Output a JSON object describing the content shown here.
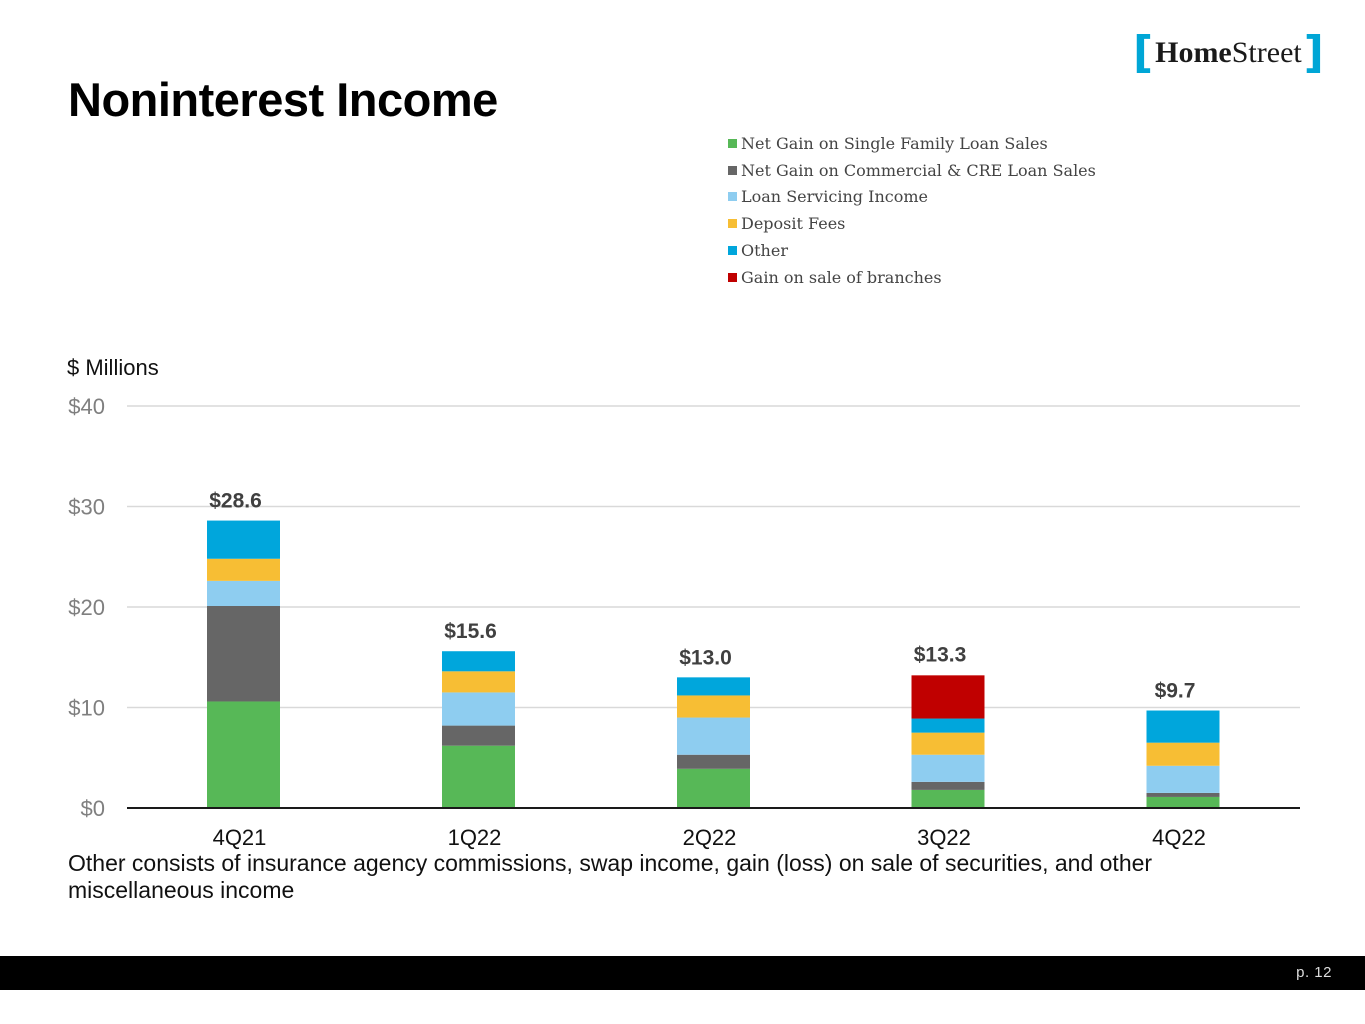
{
  "page": {
    "title": "Noninterest Income",
    "logo_text_home": "Home",
    "logo_text_street": "Street",
    "note": "Other consists of insurance agency commissions, swap income, gain (loss) on sale of securities, and other miscellaneous income",
    "page_number": "p. 12"
  },
  "chart_data": {
    "type": "bar",
    "stacked": true,
    "ylabel": "$ Millions",
    "ylim": [
      0,
      40
    ],
    "yticks": [
      0,
      10,
      20,
      30,
      40
    ],
    "ytick_labels": [
      "$0",
      "$10",
      "$20",
      "$30",
      "$40"
    ],
    "categories": [
      "4Q21",
      "1Q22",
      "2Q22",
      "3Q22",
      "4Q22"
    ],
    "totals": [
      28.6,
      15.6,
      13.0,
      13.3,
      9.7
    ],
    "total_labels": [
      "$28.6",
      "$15.6",
      "$13.0",
      "$13.3",
      "$9.7"
    ],
    "total_label_colors": [
      "#404040",
      "#404040",
      "#404040",
      "#404040",
      "#404040"
    ],
    "legend_position": "top-right",
    "series": [
      {
        "name": "Net Gain on Single Family Loan Sales",
        "color": "#57b857",
        "values": [
          10.6,
          6.2,
          3.9,
          1.8,
          1.1
        ]
      },
      {
        "name": "Net Gain on Commercial & CRE Loan Sales",
        "color": "#666666",
        "values": [
          9.5,
          2.0,
          1.4,
          0.8,
          0.4
        ]
      },
      {
        "name": "Loan Servicing Income",
        "color": "#8ecdf0",
        "values": [
          2.5,
          3.3,
          3.7,
          2.7,
          2.7
        ]
      },
      {
        "name": "Deposit Fees",
        "color": "#f7be34",
        "values": [
          2.2,
          2.1,
          2.2,
          2.2,
          2.3
        ]
      },
      {
        "name": "Other",
        "color": "#00a6dc",
        "values": [
          3.8,
          2.0,
          1.8,
          1.4,
          3.2
        ]
      },
      {
        "name": "Gain on sale of branches",
        "color": "#c00000",
        "values": [
          0,
          0,
          0,
          4.3,
          0
        ]
      }
    ]
  }
}
